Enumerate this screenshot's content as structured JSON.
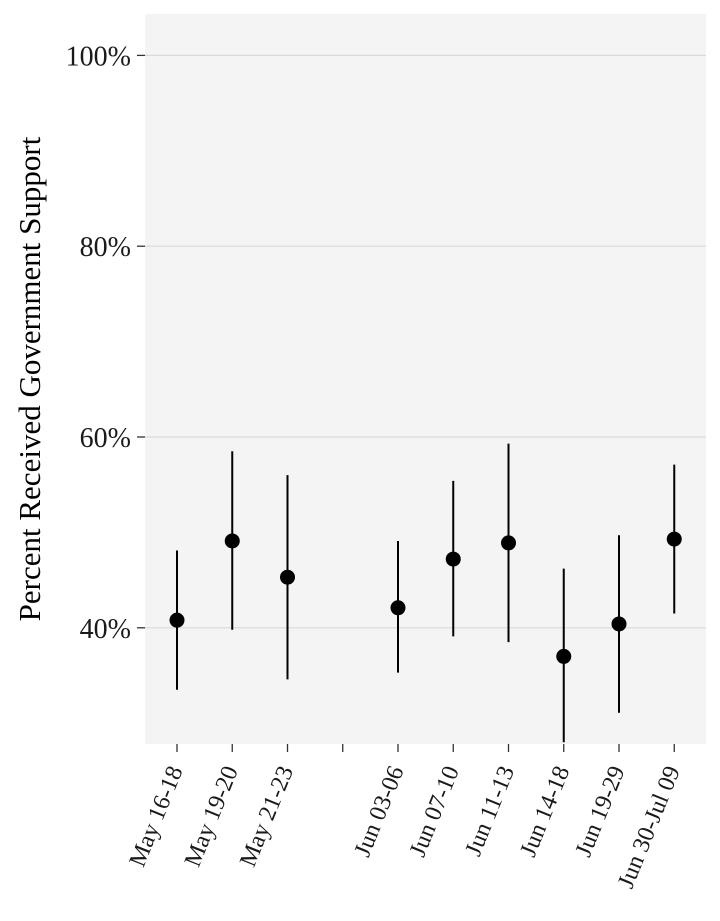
{
  "chart_data": {
    "type": "scatter",
    "title": "",
    "xlabel": "",
    "ylabel": "Percent Received Government Support",
    "ylim": [
      0.28,
      1.04
    ],
    "yticks": [
      0.4,
      0.6,
      0.8,
      1.0
    ],
    "ytick_labels": [
      "40%",
      "60%",
      "80%",
      "100%"
    ],
    "categories": [
      "May 16-18",
      "May 19-20",
      "May 21-23",
      "",
      "Jun 03-06",
      "Jun 07-10",
      "Jun 11-13",
      "Jun 14-18",
      "Jun 19-29",
      "Jun 30-Jul 09"
    ],
    "series": [
      {
        "values": [
          0.408,
          0.491,
          0.453,
          null,
          0.421,
          0.472,
          0.489,
          0.37,
          0.404,
          0.493
        ],
        "lower": [
          0.335,
          0.398,
          0.346,
          null,
          0.353,
          0.391,
          0.385,
          0.28,
          0.311,
          0.415
        ],
        "upper": [
          0.481,
          0.585,
          0.56,
          null,
          0.491,
          0.554,
          0.593,
          0.462,
          0.497,
          0.571
        ]
      }
    ],
    "grid": true,
    "legend": "none"
  },
  "colors": {
    "panel": "#f4f4f4",
    "grid": "#d9d9d9",
    "mark": "#000000",
    "tick": "#333333"
  }
}
